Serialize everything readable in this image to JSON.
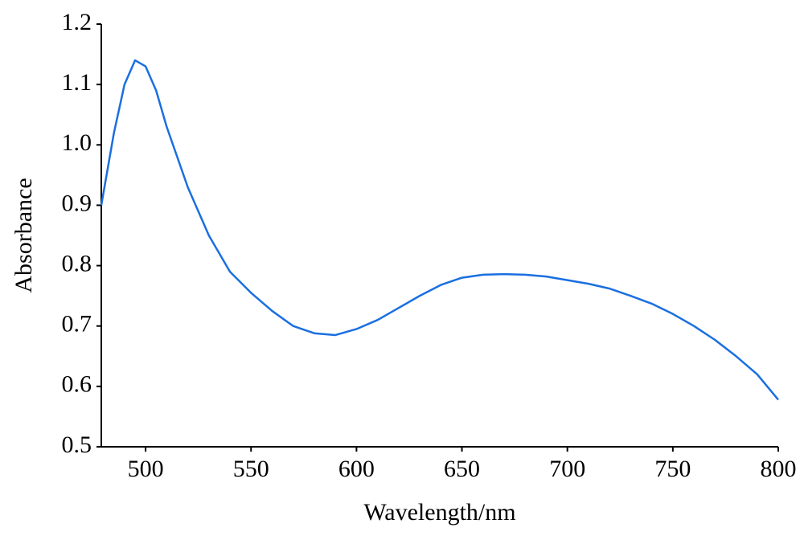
{
  "chart_data": {
    "type": "line",
    "x_label": "Wavelength/nm",
    "y_label": "Absorbance",
    "x": [
      479,
      485,
      490,
      495,
      500,
      505,
      510,
      520,
      530,
      540,
      550,
      560,
      570,
      580,
      590,
      600,
      610,
      620,
      630,
      640,
      650,
      660,
      670,
      680,
      690,
      700,
      710,
      720,
      730,
      740,
      750,
      760,
      770,
      780,
      790,
      800
    ],
    "values": [
      0.9,
      1.02,
      1.1,
      1.14,
      1.13,
      1.09,
      1.03,
      0.93,
      0.85,
      0.79,
      0.755,
      0.725,
      0.7,
      0.688,
      0.685,
      0.695,
      0.71,
      0.73,
      0.75,
      0.768,
      0.78,
      0.785,
      0.786,
      0.785,
      0.782,
      0.776,
      0.77,
      0.762,
      0.75,
      0.737,
      0.72,
      0.7,
      0.677,
      0.65,
      0.62,
      0.578
    ],
    "color": "#1a6fe0",
    "xlim": [
      479,
      800
    ],
    "xticks": [
      500,
      550,
      600,
      650,
      700,
      750,
      800
    ],
    "ylim": [
      0.5,
      1.2
    ],
    "yticks": [
      0.5,
      0.6,
      0.7,
      0.8,
      0.9,
      {
        "value": 1,
        "label": "1.0"
      },
      1.1,
      1.2
    ]
  }
}
